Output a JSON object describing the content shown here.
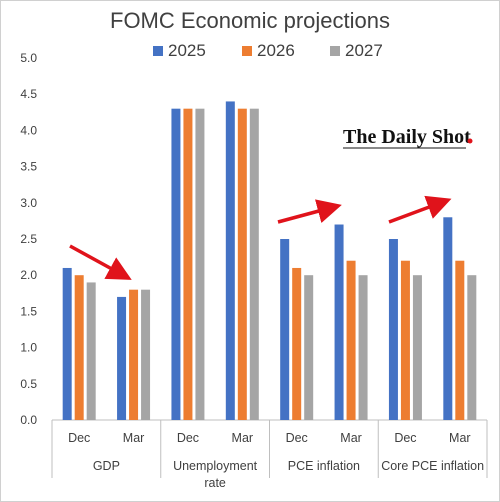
{
  "watermark": "The Daily Shot",
  "colors": {
    "2025": "#4472c4",
    "2026": "#ed7d31",
    "2027": "#a5a5a5",
    "arrow": "#e0131b",
    "axis": "#bfbfbf",
    "text": "#404040"
  },
  "chart_data": {
    "type": "bar",
    "title": "FOMC Economic projections",
    "ylim": [
      0,
      5.0
    ],
    "yticks": [
      "0.0",
      "0.5",
      "1.0",
      "1.5",
      "2.0",
      "2.5",
      "3.0",
      "3.5",
      "4.0",
      "4.5",
      "5.0"
    ],
    "grid": false,
    "legend_position": "top",
    "groups": [
      {
        "label_lines": [
          "GDP"
        ],
        "categories": [
          "Dec",
          "Mar"
        ]
      },
      {
        "label_lines": [
          "Unemployment",
          "rate"
        ],
        "categories": [
          "Dec",
          "Mar"
        ]
      },
      {
        "label_lines": [
          "PCE inflation"
        ],
        "categories": [
          "Dec",
          "Mar"
        ]
      },
      {
        "label_lines": [
          "Core PCE inflation"
        ],
        "categories": [
          "Dec",
          "Mar"
        ]
      }
    ],
    "series": [
      {
        "name": "2025",
        "values": [
          2.1,
          1.7,
          4.3,
          4.4,
          2.5,
          2.7,
          2.5,
          2.8
        ]
      },
      {
        "name": "2026",
        "values": [
          2.0,
          1.8,
          4.3,
          4.3,
          2.1,
          2.2,
          2.2,
          2.2
        ]
      },
      {
        "name": "2027",
        "values": [
          1.9,
          1.8,
          4.3,
          4.3,
          2.0,
          2.0,
          2.0,
          2.0
        ]
      }
    ],
    "annotations": [
      {
        "type": "arrow",
        "group": "GDP",
        "direction": "down"
      },
      {
        "type": "arrow",
        "group": "PCE inflation",
        "direction": "up"
      },
      {
        "type": "arrow",
        "group": "Core PCE inflation",
        "direction": "up"
      }
    ]
  }
}
